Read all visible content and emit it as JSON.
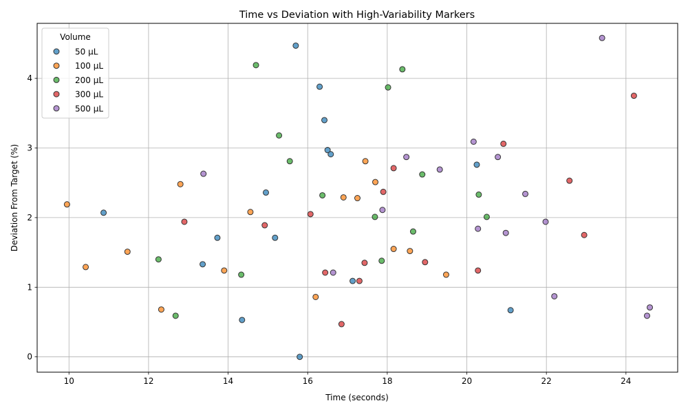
{
  "chart_data": {
    "type": "scatter",
    "title": "Time vs Deviation with High-Variability Markers",
    "xlabel": "Time (seconds)",
    "ylabel": "Deviation From Target (%)",
    "xlim": [
      9.2,
      25.3
    ],
    "ylim": [
      -0.22,
      4.79
    ],
    "xticks": [
      10,
      12,
      14,
      16,
      18,
      20,
      22,
      24
    ],
    "yticks": [
      0,
      1,
      2,
      3,
      4
    ],
    "grid": true,
    "legend": {
      "title": "Volume",
      "placement": "top-left"
    },
    "series": [
      {
        "name": "50 µL",
        "color": "#1f77b4",
        "points": [
          [
            10.87,
            2.07
          ],
          [
            13.36,
            1.33
          ],
          [
            13.73,
            1.71
          ],
          [
            14.35,
            0.53
          ],
          [
            14.95,
            2.36
          ],
          [
            15.18,
            1.71
          ],
          [
            15.7,
            4.47
          ],
          [
            15.8,
            0.0
          ],
          [
            16.3,
            3.88
          ],
          [
            16.42,
            3.4
          ],
          [
            16.5,
            2.97
          ],
          [
            16.58,
            2.91
          ],
          [
            17.13,
            1.09
          ],
          [
            20.25,
            2.76
          ],
          [
            21.1,
            0.67
          ]
        ]
      },
      {
        "name": "100 µL",
        "color": "#ff7f0e",
        "points": [
          [
            9.95,
            2.19
          ],
          [
            10.42,
            1.29
          ],
          [
            11.47,
            1.51
          ],
          [
            12.32,
            0.68
          ],
          [
            12.8,
            2.48
          ],
          [
            13.9,
            1.24
          ],
          [
            14.56,
            2.08
          ],
          [
            16.2,
            0.86
          ],
          [
            16.9,
            2.29
          ],
          [
            17.25,
            2.28
          ],
          [
            17.45,
            2.81
          ],
          [
            17.7,
            2.51
          ],
          [
            18.16,
            1.55
          ],
          [
            18.57,
            1.52
          ],
          [
            19.48,
            1.18
          ]
        ]
      },
      {
        "name": "200 µL",
        "color": "#2ca02c",
        "points": [
          [
            12.25,
            1.4
          ],
          [
            12.68,
            0.59
          ],
          [
            14.33,
            1.18
          ],
          [
            14.7,
            4.19
          ],
          [
            15.28,
            3.18
          ],
          [
            15.55,
            2.81
          ],
          [
            16.37,
            2.32
          ],
          [
            17.69,
            2.01
          ],
          [
            17.86,
            1.38
          ],
          [
            18.02,
            3.87
          ],
          [
            18.38,
            4.13
          ],
          [
            18.65,
            1.8
          ],
          [
            18.88,
            2.62
          ],
          [
            20.3,
            2.33
          ],
          [
            20.5,
            2.01
          ]
        ]
      },
      {
        "name": "300 µL",
        "color": "#d62728",
        "points": [
          [
            12.9,
            1.94
          ],
          [
            14.92,
            1.89
          ],
          [
            16.07,
            2.05
          ],
          [
            16.44,
            1.21
          ],
          [
            16.85,
            0.47
          ],
          [
            17.3,
            1.09
          ],
          [
            17.43,
            1.35
          ],
          [
            17.9,
            2.37
          ],
          [
            18.16,
            2.71
          ],
          [
            18.95,
            1.36
          ],
          [
            20.28,
            1.24
          ],
          [
            20.92,
            3.06
          ],
          [
            22.58,
            2.53
          ],
          [
            22.95,
            1.75
          ],
          [
            24.2,
            3.75
          ]
        ]
      },
      {
        "name": "500 µL",
        "color": "#9467bd",
        "points": [
          [
            13.38,
            2.63
          ],
          [
            16.64,
            1.21
          ],
          [
            17.88,
            2.11
          ],
          [
            18.48,
            2.87
          ],
          [
            19.32,
            2.69
          ],
          [
            20.17,
            3.09
          ],
          [
            20.28,
            1.84
          ],
          [
            20.78,
            2.87
          ],
          [
            20.98,
            1.78
          ],
          [
            21.47,
            2.34
          ],
          [
            21.98,
            1.94
          ],
          [
            22.2,
            0.87
          ],
          [
            23.4,
            4.58
          ],
          [
            24.53,
            0.59
          ],
          [
            24.6,
            0.71
          ]
        ]
      }
    ]
  }
}
